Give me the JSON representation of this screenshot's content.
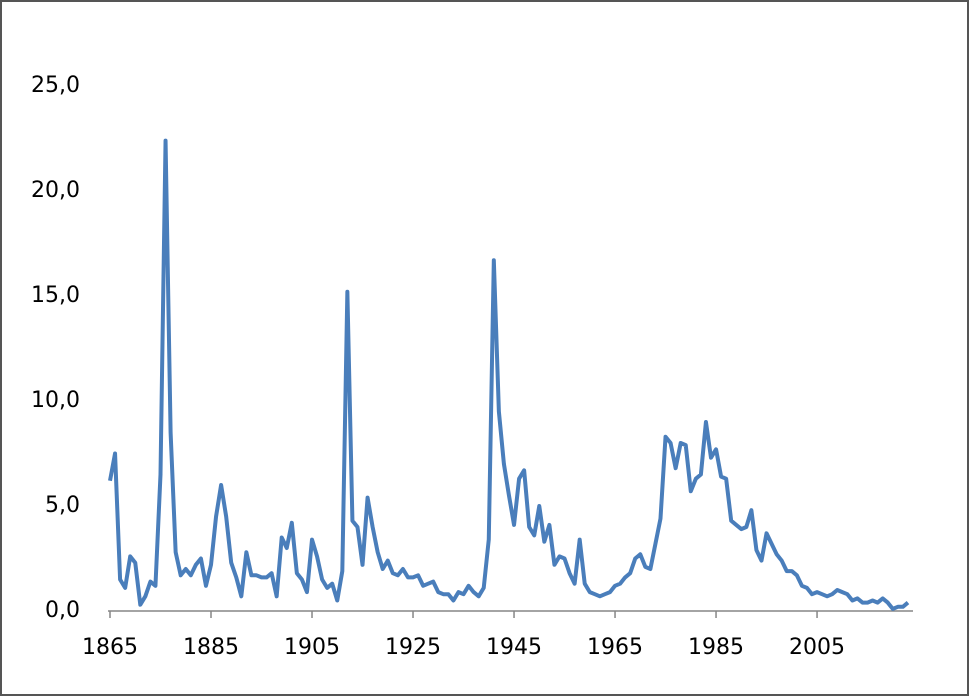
{
  "chart_data": {
    "type": "line",
    "x": [
      1865,
      1866,
      1867,
      1868,
      1869,
      1870,
      1871,
      1872,
      1873,
      1874,
      1875,
      1876,
      1877,
      1878,
      1879,
      1880,
      1881,
      1882,
      1883,
      1884,
      1885,
      1886,
      1887,
      1888,
      1889,
      1890,
      1891,
      1892,
      1893,
      1894,
      1895,
      1896,
      1897,
      1898,
      1899,
      1900,
      1901,
      1902,
      1903,
      1904,
      1905,
      1906,
      1907,
      1908,
      1909,
      1910,
      1911,
      1912,
      1913,
      1914,
      1915,
      1916,
      1917,
      1918,
      1919,
      1920,
      1921,
      1922,
      1923,
      1924,
      1925,
      1926,
      1927,
      1928,
      1929,
      1930,
      1931,
      1932,
      1933,
      1934,
      1935,
      1936,
      1937,
      1938,
      1939,
      1940,
      1941,
      1942,
      1943,
      1944,
      1945,
      1946,
      1947,
      1948,
      1949,
      1950,
      1951,
      1952,
      1953,
      1954,
      1955,
      1956,
      1957,
      1958,
      1959,
      1960,
      1961,
      1962,
      1963,
      1964,
      1965,
      1966,
      1967,
      1968,
      1969,
      1970,
      1971,
      1972,
      1973,
      1974,
      1975,
      1976,
      1977,
      1978,
      1979,
      1980,
      1981,
      1982,
      1983,
      1984,
      1985,
      1986,
      1987,
      1988,
      1989,
      1990,
      1991,
      1992,
      1993,
      1994,
      1995,
      1996,
      1997,
      1998,
      1999,
      2000,
      2001,
      2002,
      2003,
      2004,
      2005,
      2006,
      2007,
      2008,
      2009,
      2010,
      2011,
      2012,
      2013,
      2014,
      2015,
      2016,
      2017,
      2018,
      2019,
      2020,
      2021,
      2022,
      2023
    ],
    "series": [
      {
        "color": "#4a7ebb",
        "values": [
          6.2,
          7.5,
          1.5,
          1.1,
          2.6,
          2.3,
          0.3,
          0.7,
          1.4,
          1.2,
          6.5,
          22.4,
          8.5,
          2.8,
          1.7,
          2.0,
          1.7,
          2.2,
          2.5,
          1.2,
          2.2,
          4.5,
          6.0,
          4.5,
          2.3,
          1.6,
          0.7,
          2.8,
          1.7,
          1.7,
          1.6,
          1.6,
          1.8,
          0.7,
          3.5,
          3.0,
          4.2,
          1.8,
          1.5,
          0.9,
          3.4,
          2.6,
          1.5,
          1.1,
          1.3,
          0.5,
          1.9,
          15.2,
          4.3,
          4.0,
          2.2,
          5.4,
          4.0,
          2.8,
          2.0,
          2.4,
          1.8,
          1.7,
          2.0,
          1.6,
          1.6,
          1.7,
          1.2,
          1.3,
          1.4,
          0.9,
          0.8,
          0.8,
          0.5,
          0.9,
          0.8,
          1.2,
          0.9,
          0.7,
          1.1,
          3.4,
          16.7,
          9.5,
          7.0,
          5.5,
          4.1,
          6.3,
          6.7,
          4.0,
          3.6,
          5.0,
          3.3,
          4.1,
          2.2,
          2.6,
          2.5,
          1.8,
          1.3,
          3.4,
          1.3,
          0.9,
          0.8,
          0.7,
          0.8,
          0.9,
          1.2,
          1.3,
          1.6,
          1.8,
          2.5,
          2.7,
          2.1,
          2.0,
          3.2,
          4.4,
          8.3,
          8.0,
          6.8,
          8.0,
          7.9,
          5.7,
          6.3,
          6.5,
          9.0,
          7.3,
          7.7,
          6.4,
          6.3,
          4.3,
          4.1,
          3.9,
          4.0,
          4.8,
          2.9,
          2.4,
          3.7,
          3.2,
          2.7,
          2.4,
          1.9,
          1.9,
          1.7,
          1.2,
          1.1,
          0.8,
          0.9,
          0.8,
          0.7,
          0.8,
          1.0,
          0.9,
          0.8,
          0.5,
          0.6,
          0.4,
          0.4,
          0.5,
          0.4,
          0.6,
          0.4,
          0.1,
          0.2,
          0.2,
          0.4
        ]
      }
    ],
    "xlim": [
      1865,
      2024
    ],
    "xticks": [
      1865,
      1885,
      1905,
      1925,
      1945,
      1965,
      1985,
      2005
    ],
    "ylim": [
      0,
      25
    ],
    "yticks": [
      {
        "value": 0,
        "label": "0,0"
      },
      {
        "value": 5,
        "label": "5,0"
      },
      {
        "value": 10,
        "label": "10,0"
      },
      {
        "value": 15,
        "label": "15,0"
      },
      {
        "value": 20,
        "label": "20,0"
      },
      {
        "value": 25,
        "label": "25,0"
      }
    ],
    "grid": false
  }
}
